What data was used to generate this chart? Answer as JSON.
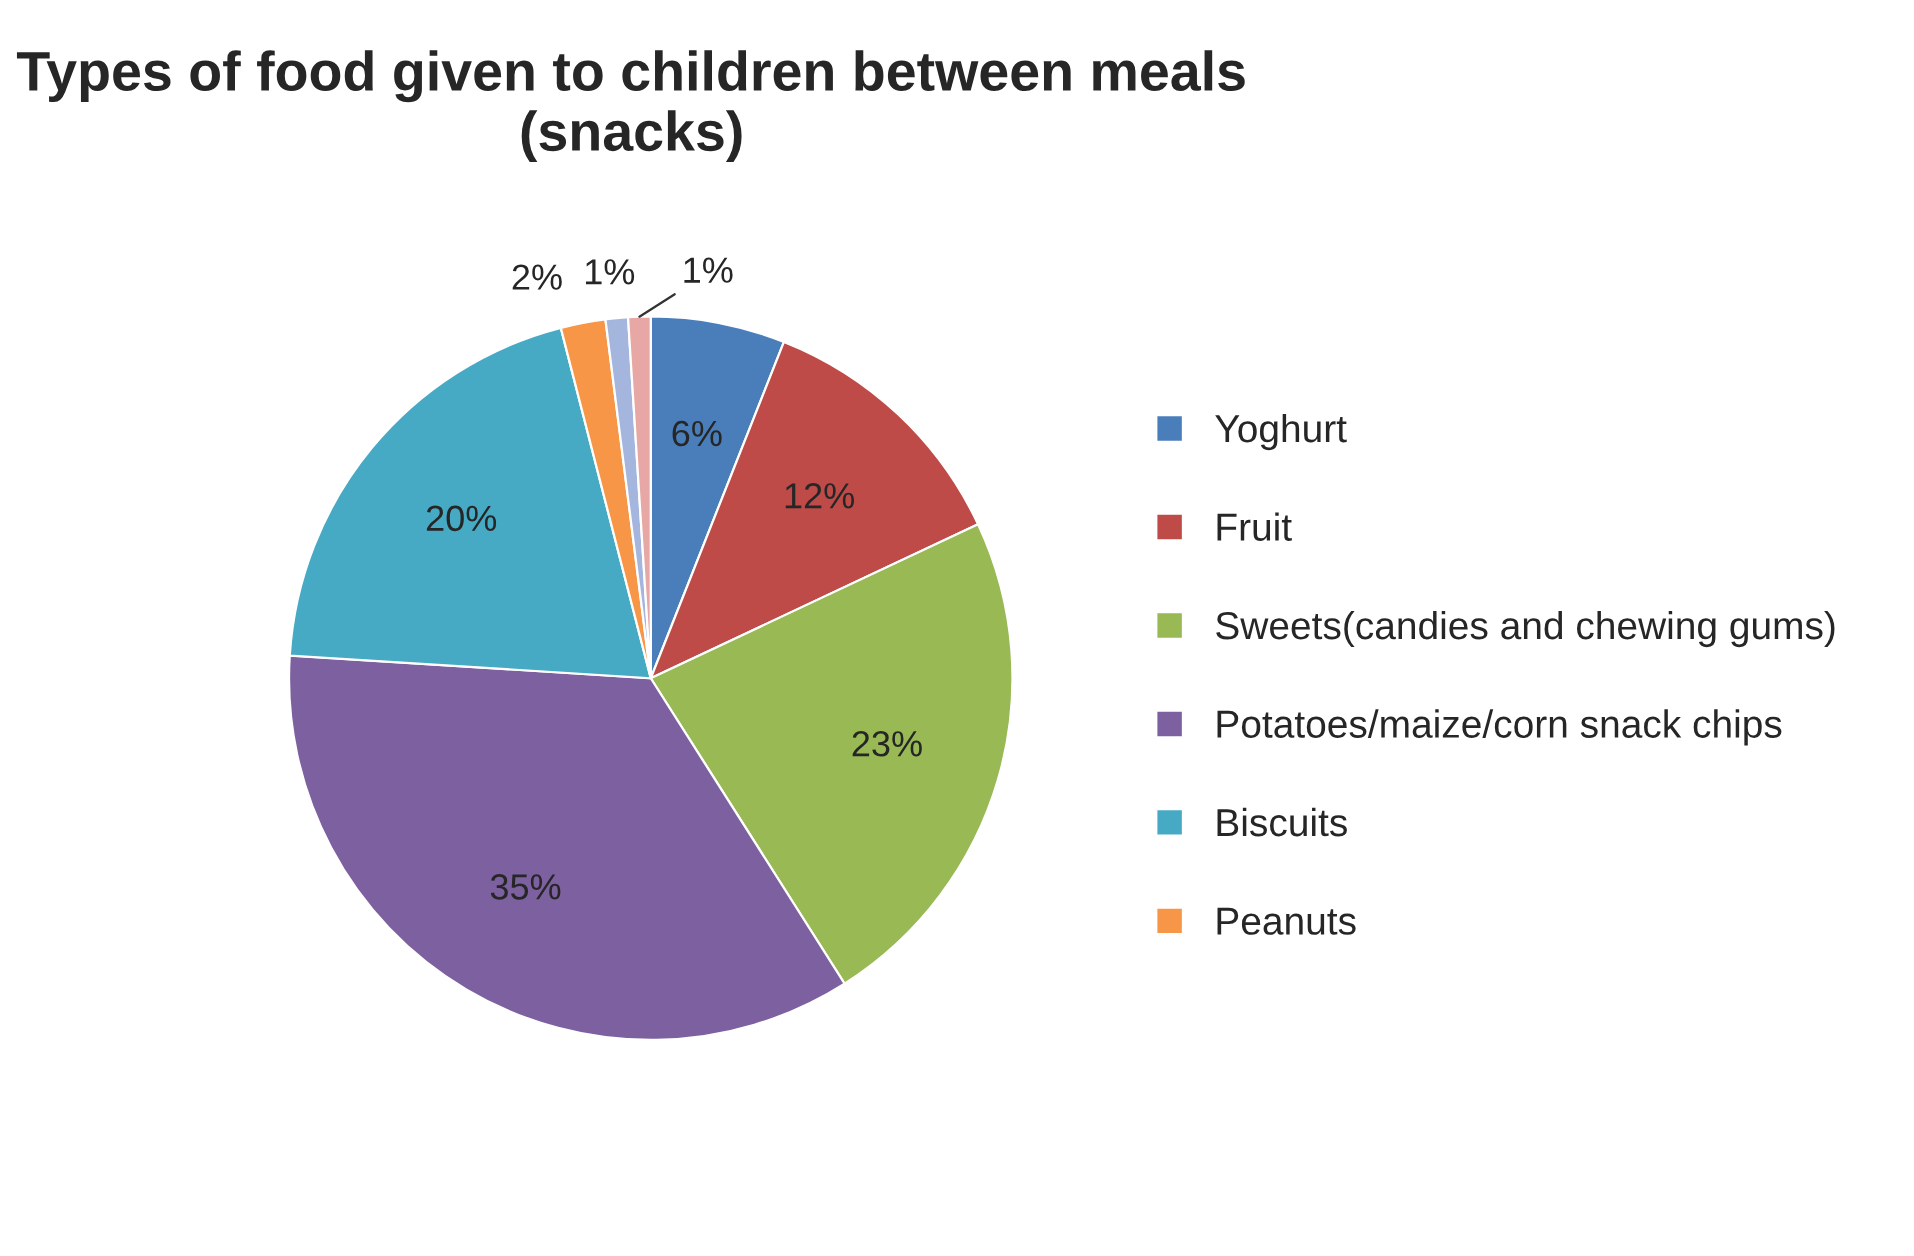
{
  "chart_data": {
    "type": "pie",
    "title": "Types of food given to children between meals (snacks)",
    "categories": [
      "Yoghurt",
      "Fruit",
      "Sweets(candies and chewing gums)",
      "Potatoes/maize/corn snack chips",
      "Biscuits",
      "Peanuts",
      null,
      null
    ],
    "values": [
      6,
      12,
      23,
      35,
      20,
      2,
      1,
      1
    ],
    "value_labels": [
      "6%",
      "12%",
      "23%",
      "35%",
      "20%",
      "2%",
      "1%",
      "1%"
    ],
    "colors": [
      "#4a7ebb",
      "#be4b48",
      "#98b954",
      "#7d60a0",
      "#46aac5",
      "#f79646",
      "#a5b6de",
      "#e6a7a5"
    ],
    "legend": "right"
  }
}
